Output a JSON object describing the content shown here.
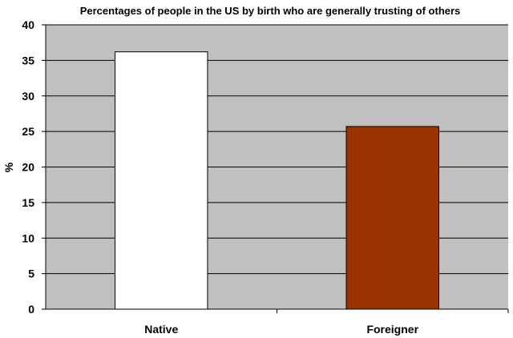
{
  "chart_data": {
    "type": "bar",
    "title": "Percentages of people in the US by birth who are generally trusting of others",
    "xlabel": "",
    "ylabel": "%",
    "categories": [
      "Native",
      "Foreigner"
    ],
    "values": [
      36.2,
      25.7
    ],
    "bar_colors": [
      "#ffffff",
      "#993300"
    ],
    "plot_background": "#c0c0c0",
    "ylim": [
      0,
      40
    ],
    "yticks": [
      "0",
      "5",
      "10",
      "15",
      "20",
      "25",
      "30",
      "35",
      "40"
    ],
    "grid": true,
    "legend": "none"
  }
}
